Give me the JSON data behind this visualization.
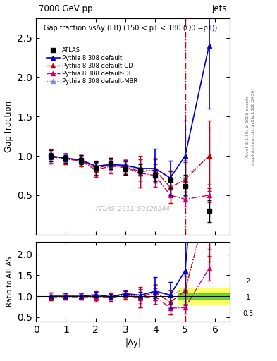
{
  "title_top": "7000 GeV pp",
  "title_right": "Jets",
  "plot_title": "Gap fraction vsΔy (FB) (150 < pT < 180 (Q0 =ρ̅T))",
  "ylabel_main": "Gap fraction",
  "ylabel_ratio": "Ratio to ATLAS",
  "xlabel": "|Δy|",
  "watermark": "ATLAS_2011_S9126244",
  "right_label": "Rivet 3.1.10, ≥ 100k events",
  "right_label2": "mcplots.cern.ch [arXiv:1306.3436]",
  "atlas_x": [
    0.5,
    1.0,
    1.5,
    2.0,
    2.5,
    3.0,
    3.5,
    4.0,
    4.5,
    5.0,
    5.8
  ],
  "atlas_y": [
    1.0,
    0.97,
    0.95,
    0.84,
    0.9,
    0.83,
    0.82,
    0.75,
    0.7,
    0.62,
    0.3
  ],
  "atlas_yerr_lo": [
    0.07,
    0.06,
    0.06,
    0.09,
    0.07,
    0.07,
    0.07,
    0.09,
    0.11,
    0.14,
    0.14
  ],
  "atlas_yerr_hi": [
    0.07,
    0.06,
    0.06,
    0.09,
    0.07,
    0.07,
    0.07,
    0.09,
    0.11,
    0.14,
    0.14
  ],
  "py_default_x": [
    0.5,
    1.0,
    1.5,
    2.0,
    2.5,
    3.0,
    3.5,
    4.0,
    4.5,
    5.0,
    5.8
  ],
  "py_default_y": [
    1.0,
    0.97,
    0.95,
    0.87,
    0.89,
    0.88,
    0.84,
    0.84,
    0.72,
    1.0,
    2.4
  ],
  "py_default_yerr_lo": [
    0.04,
    0.04,
    0.04,
    0.05,
    0.05,
    0.05,
    0.06,
    0.15,
    0.22,
    0.5,
    0.8
  ],
  "py_default_yerr_hi": [
    0.04,
    0.04,
    0.04,
    0.05,
    0.05,
    0.05,
    0.06,
    0.25,
    0.22,
    0.45,
    0.8
  ],
  "py_cd_x": [
    0.5,
    1.0,
    1.5,
    2.0,
    2.5,
    3.0,
    3.5,
    4.0,
    4.5,
    5.0,
    5.8
  ],
  "py_cd_y": [
    0.99,
    0.96,
    0.94,
    0.85,
    0.88,
    0.86,
    0.8,
    0.82,
    0.6,
    0.7,
    1.0
  ],
  "py_cd_yerr_lo": [
    0.09,
    0.07,
    0.07,
    0.09,
    0.09,
    0.09,
    0.2,
    0.14,
    0.2,
    0.22,
    0.45
  ],
  "py_cd_yerr_hi": [
    0.09,
    0.07,
    0.07,
    0.09,
    0.09,
    0.09,
    0.2,
    0.14,
    0.2,
    0.22,
    0.45
  ],
  "py_dl_x": [
    0.5,
    1.0,
    1.5,
    2.0,
    2.5,
    3.0,
    3.5,
    4.0,
    4.5,
    5.0,
    5.8
  ],
  "py_dl_y": [
    0.99,
    0.96,
    0.94,
    0.82,
    0.87,
    0.85,
    0.78,
    0.75,
    0.5,
    0.45,
    0.5
  ],
  "py_dl_yerr_lo": [
    0.09,
    0.07,
    0.07,
    0.09,
    0.09,
    0.09,
    0.18,
    0.14,
    0.11,
    0.09,
    0.09
  ],
  "py_dl_yerr_hi": [
    0.09,
    0.07,
    0.07,
    0.09,
    0.09,
    0.09,
    0.18,
    0.14,
    0.11,
    0.09,
    0.09
  ],
  "py_mbr_x": [
    0.5,
    1.0,
    1.5,
    2.0,
    2.5,
    3.0,
    3.5,
    4.0,
    4.5,
    5.0,
    5.8
  ],
  "py_mbr_y": [
    1.0,
    0.97,
    0.95,
    0.84,
    0.89,
    0.87,
    0.82,
    0.82,
    0.72,
    0.73,
    1.0
  ],
  "py_mbr_yerr_lo": [
    0.09,
    0.07,
    0.06,
    0.09,
    0.07,
    0.09,
    0.14,
    0.15,
    0.22,
    0.22,
    0.36
  ],
  "py_mbr_yerr_hi": [
    0.09,
    0.07,
    0.06,
    0.09,
    0.07,
    0.09,
    0.14,
    0.15,
    0.22,
    0.22,
    0.36
  ],
  "vline_x": 5.0,
  "xlim": [
    0,
    6.5
  ],
  "ylim_main": [
    0,
    2.75
  ],
  "ylim_ratio": [
    0.4,
    2.3
  ],
  "yticks_main": [
    0.5,
    1.0,
    1.5,
    2.0,
    2.5
  ],
  "yticks_ratio": [
    0.5,
    1.0,
    1.5,
    2.0
  ],
  "xticks": [
    0,
    1,
    2,
    3,
    4,
    5,
    6
  ],
  "color_atlas": "#000000",
  "color_default": "#0000cc",
  "color_cd": "#cc0000",
  "color_dl": "#cc0066",
  "color_mbr": "#8888cc",
  "green_band_lo": 0.93,
  "green_band_hi": 1.07,
  "yellow_band_lo": 0.8,
  "yellow_band_hi": 1.2,
  "band_xstart": 4.75,
  "band_xend": 6.5
}
